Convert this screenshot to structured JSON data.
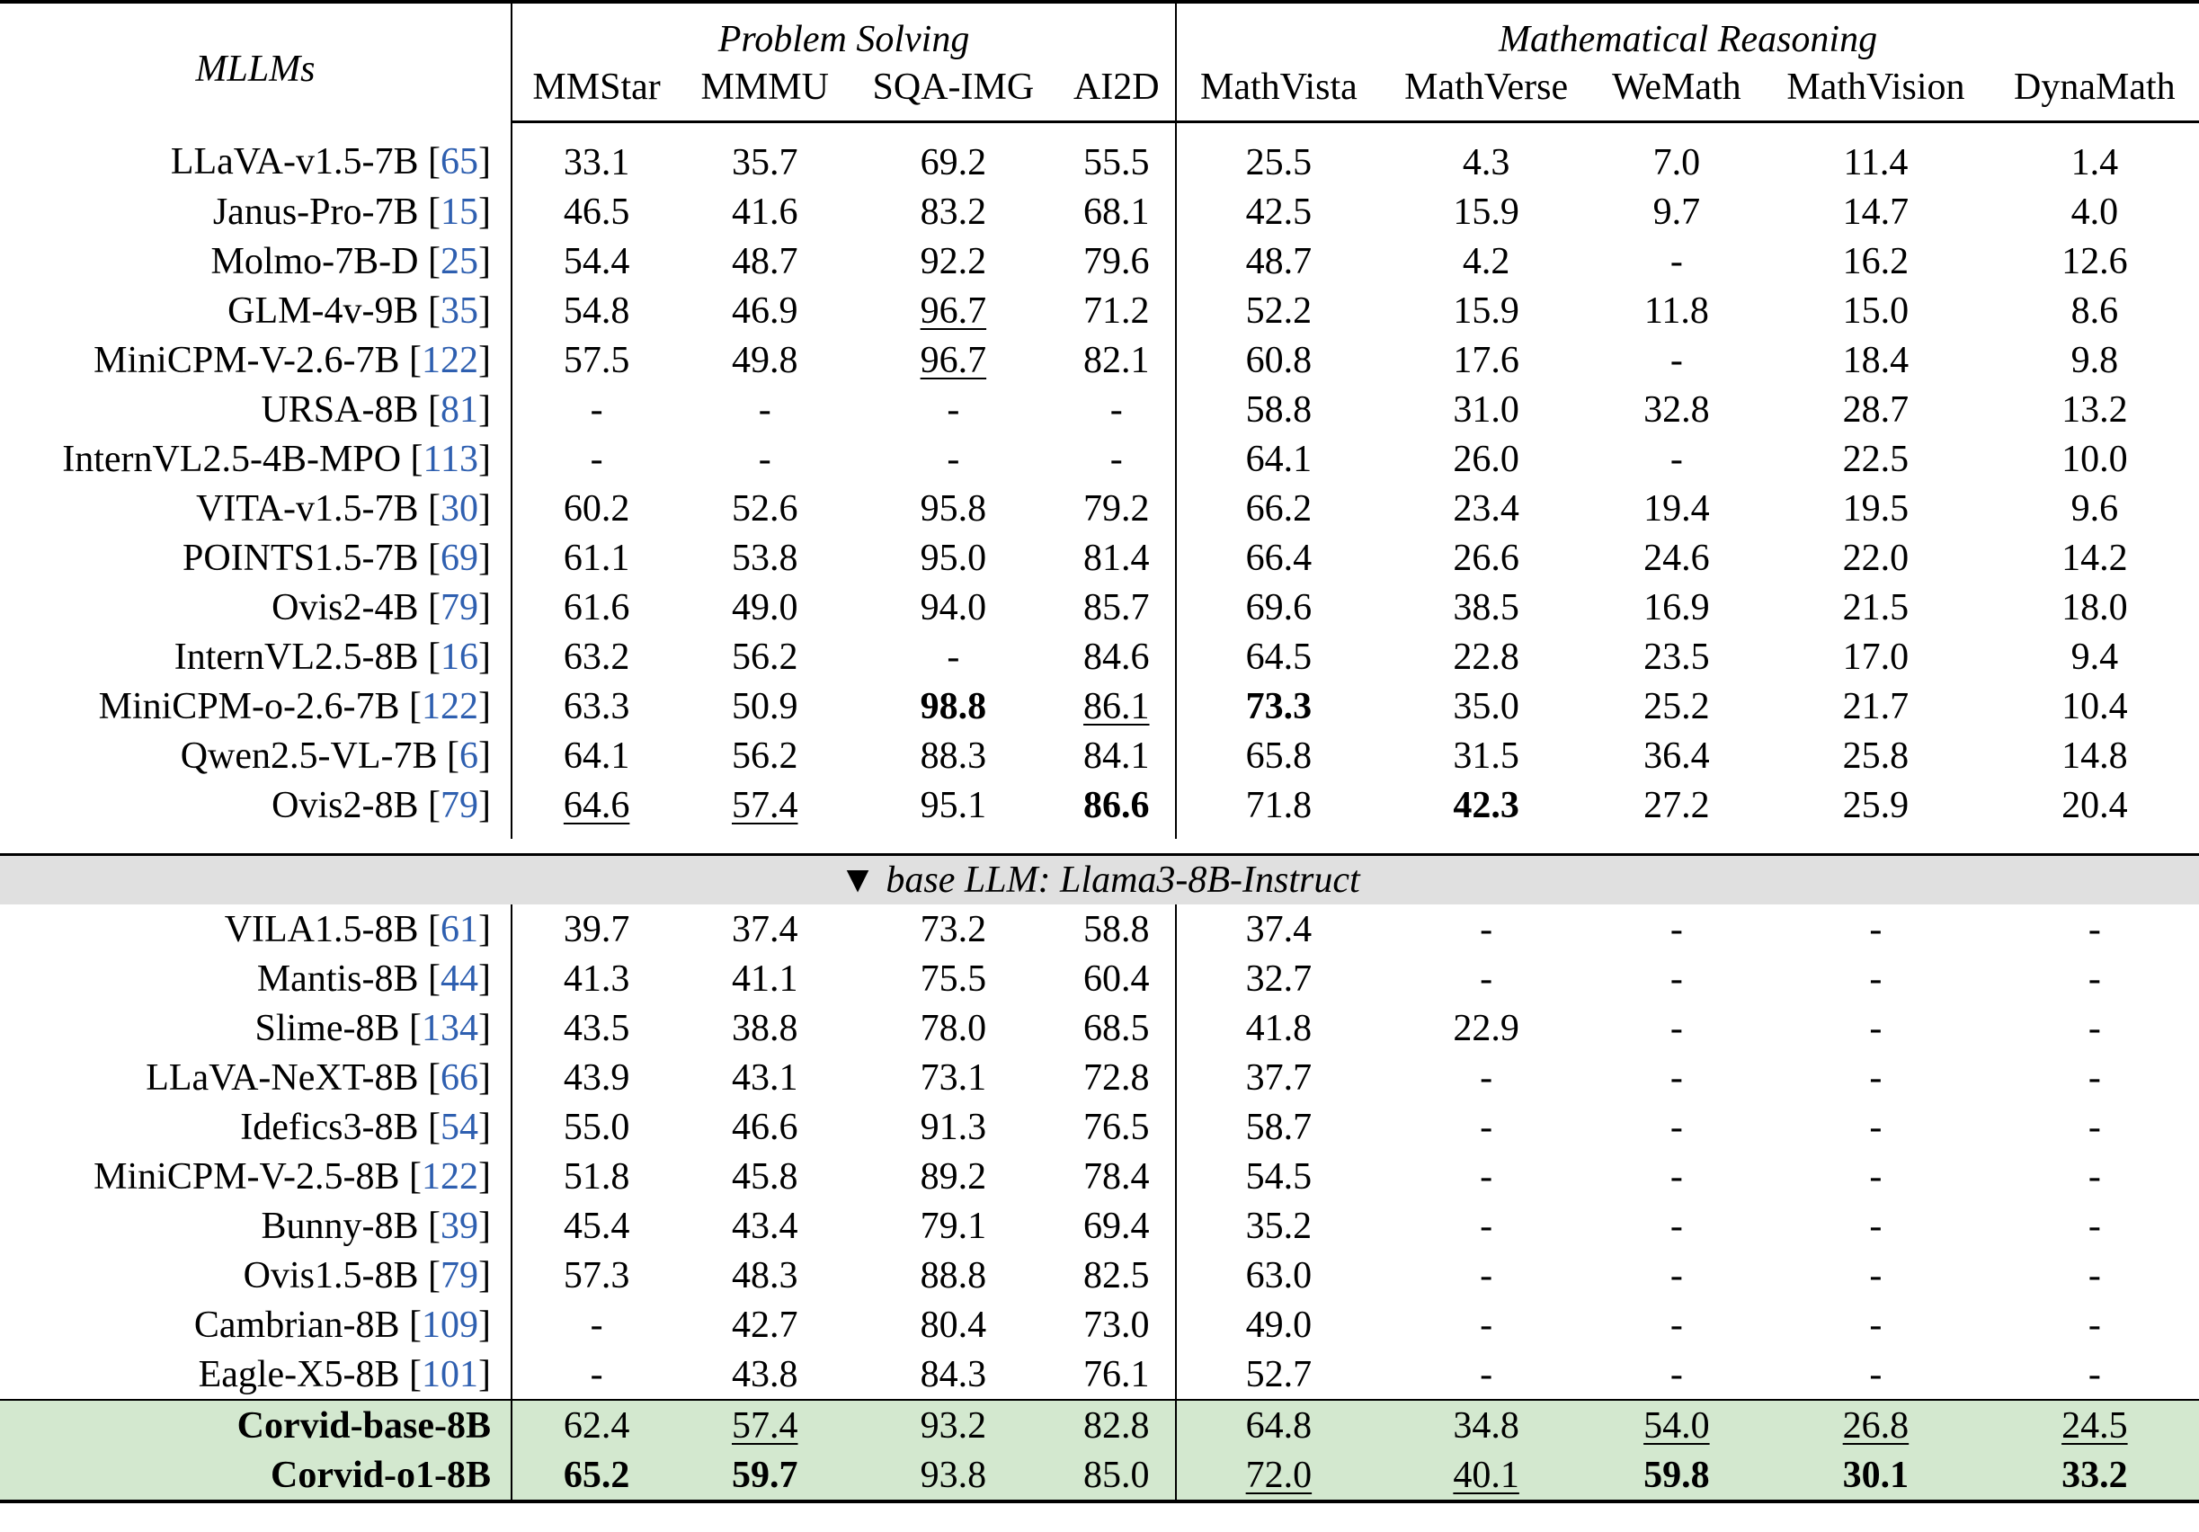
{
  "header": {
    "mllms": "MLLMs",
    "group_problem_solving": "Problem Solving",
    "group_math_reasoning": "Mathematical Reasoning",
    "columns": [
      "MMStar",
      "MMMU",
      "SQA-IMG",
      "AI2D",
      "MathVista",
      "MathVerse",
      "WeMath",
      "MathVision",
      "DynaMath"
    ]
  },
  "section_label": "▼ base LLM: Llama3-8B-Instruct",
  "group1_rows": [
    {
      "name": "LLaVA-v1.5-7B",
      "ref": "65",
      "values": [
        "33.1",
        "35.7",
        "69.2",
        "55.5",
        "25.5",
        "4.3",
        "7.0",
        "11.4",
        "1.4"
      ]
    },
    {
      "name": "Janus-Pro-7B",
      "ref": "15",
      "values": [
        "46.5",
        "41.6",
        "83.2",
        "68.1",
        "42.5",
        "15.9",
        "9.7",
        "14.7",
        "4.0"
      ]
    },
    {
      "name": "Molmo-7B-D",
      "ref": "25",
      "values": [
        "54.4",
        "48.7",
        "92.2",
        "79.6",
        "48.7",
        "4.2",
        "-",
        "16.2",
        "12.6"
      ]
    },
    {
      "name": "GLM-4v-9B",
      "ref": "35",
      "values": [
        "54.8",
        "46.9",
        "96.7",
        "71.2",
        "52.2",
        "15.9",
        "11.8",
        "15.0",
        "8.6"
      ],
      "underline": [
        2
      ]
    },
    {
      "name": "MiniCPM-V-2.6-7B",
      "ref": "122",
      "values": [
        "57.5",
        "49.8",
        "96.7",
        "82.1",
        "60.8",
        "17.6",
        "-",
        "18.4",
        "9.8"
      ],
      "underline": [
        2
      ]
    },
    {
      "name": "URSA-8B",
      "ref": "81",
      "values": [
        "-",
        "-",
        "-",
        "-",
        "58.8",
        "31.0",
        "32.8",
        "28.7",
        "13.2"
      ]
    },
    {
      "name": "InternVL2.5-4B-MPO",
      "ref": "113",
      "values": [
        "-",
        "-",
        "-",
        "-",
        "64.1",
        "26.0",
        "-",
        "22.5",
        "10.0"
      ]
    },
    {
      "name": "VITA-v1.5-7B",
      "ref": "30",
      "values": [
        "60.2",
        "52.6",
        "95.8",
        "79.2",
        "66.2",
        "23.4",
        "19.4",
        "19.5",
        "9.6"
      ]
    },
    {
      "name": "POINTS1.5-7B",
      "ref": "69",
      "values": [
        "61.1",
        "53.8",
        "95.0",
        "81.4",
        "66.4",
        "26.6",
        "24.6",
        "22.0",
        "14.2"
      ]
    },
    {
      "name": "Ovis2-4B",
      "ref": "79",
      "values": [
        "61.6",
        "49.0",
        "94.0",
        "85.7",
        "69.6",
        "38.5",
        "16.9",
        "21.5",
        "18.0"
      ]
    },
    {
      "name": "InternVL2.5-8B",
      "ref": "16",
      "values": [
        "63.2",
        "56.2",
        "-",
        "84.6",
        "64.5",
        "22.8",
        "23.5",
        "17.0",
        "9.4"
      ]
    },
    {
      "name": "MiniCPM-o-2.6-7B",
      "ref": "122",
      "values": [
        "63.3",
        "50.9",
        "98.8",
        "86.1",
        "73.3",
        "35.0",
        "25.2",
        "21.7",
        "10.4"
      ],
      "bold": [
        2,
        4
      ],
      "underline": [
        3
      ]
    },
    {
      "name": "Qwen2.5-VL-7B",
      "ref": "6",
      "values": [
        "64.1",
        "56.2",
        "88.3",
        "84.1",
        "65.8",
        "31.5",
        "36.4",
        "25.8",
        "14.8"
      ]
    },
    {
      "name": "Ovis2-8B",
      "ref": "79",
      "values": [
        "64.6",
        "57.4",
        "95.1",
        "86.6",
        "71.8",
        "42.3",
        "27.2",
        "25.9",
        "20.4"
      ],
      "bold": [
        3,
        5
      ],
      "underline": [
        0,
        1
      ]
    }
  ],
  "group2_rows": [
    {
      "name": "VILA1.5-8B",
      "ref": "61",
      "values": [
        "39.7",
        "37.4",
        "73.2",
        "58.8",
        "37.4",
        "-",
        "-",
        "-",
        "-"
      ]
    },
    {
      "name": "Mantis-8B",
      "ref": "44",
      "values": [
        "41.3",
        "41.1",
        "75.5",
        "60.4",
        "32.7",
        "-",
        "-",
        "-",
        "-"
      ]
    },
    {
      "name": "Slime-8B",
      "ref": "134",
      "values": [
        "43.5",
        "38.8",
        "78.0",
        "68.5",
        "41.8",
        "22.9",
        "-",
        "-",
        "-"
      ]
    },
    {
      "name": "LLaVA-NeXT-8B",
      "ref": "66",
      "values": [
        "43.9",
        "43.1",
        "73.1",
        "72.8",
        "37.7",
        "-",
        "-",
        "-",
        "-"
      ]
    },
    {
      "name": "Idefics3-8B",
      "ref": "54",
      "values": [
        "55.0",
        "46.6",
        "91.3",
        "76.5",
        "58.7",
        "-",
        "-",
        "-",
        "-"
      ]
    },
    {
      "name": "MiniCPM-V-2.5-8B",
      "ref": "122",
      "values": [
        "51.8",
        "45.8",
        "89.2",
        "78.4",
        "54.5",
        "-",
        "-",
        "-",
        "-"
      ]
    },
    {
      "name": "Bunny-8B",
      "ref": "39",
      "values": [
        "45.4",
        "43.4",
        "79.1",
        "69.4",
        "35.2",
        "-",
        "-",
        "-",
        "-"
      ]
    },
    {
      "name": "Ovis1.5-8B",
      "ref": "79",
      "values": [
        "57.3",
        "48.3",
        "88.8",
        "82.5",
        "63.0",
        "-",
        "-",
        "-",
        "-"
      ]
    },
    {
      "name": "Cambrian-8B",
      "ref": "109",
      "values": [
        "-",
        "42.7",
        "80.4",
        "73.0",
        "49.0",
        "-",
        "-",
        "-",
        "-"
      ]
    },
    {
      "name": "Eagle-X5-8B",
      "ref": "101",
      "values": [
        "-",
        "43.8",
        "84.3",
        "76.1",
        "52.7",
        "-",
        "-",
        "-",
        "-"
      ]
    }
  ],
  "corvid_rows": [
    {
      "name": "Corvid-base-8B",
      "values": [
        "62.4",
        "57.4",
        "93.2",
        "82.8",
        "64.8",
        "34.8",
        "54.0",
        "26.8",
        "24.5"
      ],
      "underline": [
        1,
        6,
        7,
        8
      ]
    },
    {
      "name": "Corvid-o1-8B",
      "values": [
        "65.2",
        "59.7",
        "93.8",
        "85.0",
        "72.0",
        "40.1",
        "59.8",
        "30.1",
        "33.2"
      ],
      "bold": [
        0,
        1,
        6,
        7,
        8
      ],
      "underline": [
        4,
        5
      ]
    }
  ],
  "colors": {
    "citation": "#2e5fb0",
    "section_bg": "#e0e0e0",
    "highlight_bg": "#d3e8cf"
  }
}
